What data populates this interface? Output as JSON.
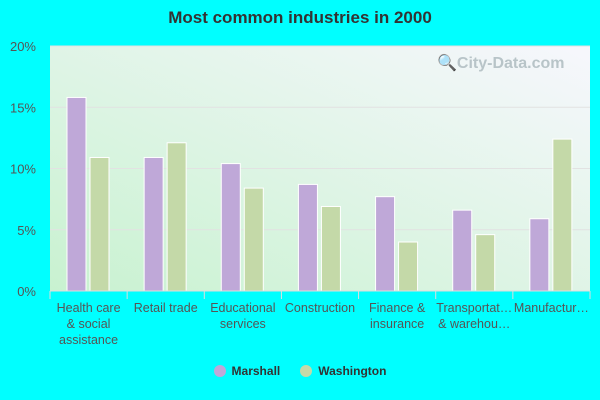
{
  "chart_data": {
    "type": "bar",
    "title": "Most common industries in 2000",
    "categories": [
      [
        "Health care",
        "& social",
        "assistance"
      ],
      [
        "Retail trade"
      ],
      [
        "Educational",
        "services"
      ],
      [
        "Construction"
      ],
      [
        "Finance &",
        "insurance"
      ],
      [
        "Transportat…",
        "& warehou…"
      ],
      [
        "Manufactur…"
      ]
    ],
    "series": [
      {
        "name": "Marshall",
        "color": "#bfa8d8",
        "values": [
          15.8,
          10.9,
          10.4,
          8.7,
          7.7,
          6.6,
          5.9
        ]
      },
      {
        "name": "Washington",
        "color": "#c4d9a8",
        "values": [
          10.9,
          12.1,
          8.4,
          6.9,
          4.0,
          4.6,
          12.4
        ]
      }
    ],
    "yticks": [
      "0%",
      "5%",
      "10%",
      "15%",
      "20%"
    ],
    "ylim": [
      0,
      20
    ],
    "grid": true,
    "legend": "bottom"
  },
  "watermark": "City-Data.com"
}
